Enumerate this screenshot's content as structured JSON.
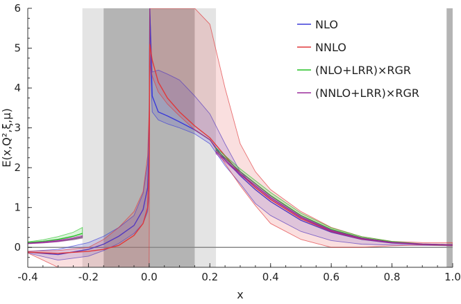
{
  "chart_data": {
    "type": "line",
    "xlabel": "x",
    "ylabel": "E(x,Q²,ξ,μ)",
    "xlim": [
      -0.4,
      1.0
    ],
    "ylim": [
      -0.5,
      6.0
    ],
    "xticks": [
      -0.4,
      -0.2,
      0.0,
      0.2,
      0.4,
      0.6,
      0.8,
      1.0
    ],
    "xtick_labels": [
      "-0.4",
      "-0.2",
      "0.0",
      "0.2",
      "0.4",
      "0.6",
      "0.8",
      "1.0"
    ],
    "yticks": [
      0,
      1,
      2,
      3,
      4,
      5,
      6
    ],
    "ytick_labels": [
      "0",
      "1",
      "2",
      "3",
      "4",
      "5",
      "6"
    ],
    "grid": false,
    "legend_position": "top-right",
    "shaded_regions": [
      {
        "x0": -0.22,
        "x1": 0.22,
        "shade": "light"
      },
      {
        "x0": -0.15,
        "x1": 0.15,
        "shade": "dark"
      },
      {
        "x0": 0.98,
        "x1": 1.0,
        "shade": "dark"
      }
    ],
    "colors": {
      "NLO": "#3a3ad8",
      "NNLO": "#e0383a",
      "LRR_NLO": "#22c022",
      "LRR_NNLO": "#9a2a9a",
      "zero_line": "#888888"
    },
    "series": [
      {
        "name": "NLO",
        "color": "#3a3ad8",
        "x": [
          -0.4,
          -0.3,
          -0.2,
          -0.15,
          -0.1,
          -0.05,
          -0.02,
          -0.005,
          0.0,
          0.002,
          0.01,
          0.03,
          0.06,
          0.1,
          0.15,
          0.2,
          0.25,
          0.3,
          0.35,
          0.4,
          0.5,
          0.6,
          0.7,
          0.8,
          0.9,
          1.0
        ],
        "y": [
          -0.12,
          -0.18,
          -0.05,
          0.08,
          0.28,
          0.55,
          0.95,
          1.5,
          2.5,
          6.0,
          3.8,
          3.4,
          3.3,
          3.15,
          2.95,
          2.7,
          2.2,
          1.8,
          1.45,
          1.15,
          0.68,
          0.38,
          0.2,
          0.11,
          0.07,
          0.06
        ],
        "band_lo": [
          -0.14,
          -0.32,
          -0.22,
          -0.08,
          0.1,
          0.35,
          0.6,
          0.9,
          1.3,
          5.0,
          3.4,
          3.2,
          3.1,
          3.0,
          2.85,
          2.6,
          2.05,
          1.6,
          1.1,
          0.8,
          0.4,
          0.17,
          0.08,
          0.06,
          0.05,
          0.04
        ],
        "band_hi": [
          -0.1,
          -0.05,
          0.12,
          0.28,
          0.5,
          0.8,
          1.35,
          2.1,
          3.3,
          6.0,
          4.4,
          4.45,
          4.35,
          4.2,
          3.8,
          3.35,
          2.6,
          1.9,
          1.5,
          1.2,
          0.72,
          0.42,
          0.24,
          0.13,
          0.08,
          0.07
        ]
      },
      {
        "name": "NNLO",
        "color": "#e0383a",
        "x": [
          -0.4,
          -0.3,
          -0.2,
          -0.15,
          -0.1,
          -0.05,
          -0.02,
          -0.005,
          0.0,
          0.002,
          0.01,
          0.03,
          0.06,
          0.1,
          0.15,
          0.2,
          0.25,
          0.3,
          0.35,
          0.4,
          0.5,
          0.6,
          0.7,
          0.8,
          0.9,
          1.0
        ],
        "y": [
          -0.12,
          -0.15,
          -0.1,
          -0.05,
          0.05,
          0.3,
          0.6,
          1.0,
          2.0,
          5.1,
          4.7,
          4.15,
          3.75,
          3.4,
          3.05,
          2.75,
          2.3,
          1.85,
          1.5,
          1.2,
          0.72,
          0.4,
          0.21,
          0.12,
          0.08,
          0.06
        ],
        "band_lo": [
          -0.14,
          -0.5,
          -0.5,
          -0.5,
          -0.5,
          -0.5,
          -0.5,
          -0.5,
          -0.5,
          4.6,
          4.3,
          3.9,
          3.6,
          3.3,
          2.95,
          2.7,
          2.1,
          1.55,
          1.05,
          0.6,
          0.2,
          0.0,
          0.0,
          0.04,
          0.06,
          0.04
        ],
        "band_hi": [
          -0.1,
          -0.08,
          0.0,
          0.2,
          0.5,
          0.9,
          1.4,
          2.3,
          3.5,
          6.0,
          6.0,
          6.0,
          6.0,
          6.0,
          6.0,
          5.6,
          4.0,
          2.6,
          1.9,
          1.45,
          0.9,
          0.5,
          0.27,
          0.15,
          0.12,
          0.12
        ]
      },
      {
        "name": "(NLO+LRR)×RGR",
        "color": "#22c022",
        "x": [
          -0.4,
          -0.35,
          -0.3,
          -0.25,
          -0.22,
          null,
          0.22,
          0.3,
          0.4,
          0.5,
          0.6,
          0.7,
          0.8,
          0.9,
          1.0
        ],
        "y": [
          0.12,
          0.15,
          0.2,
          0.28,
          0.35,
          null,
          2.45,
          1.9,
          1.3,
          0.8,
          0.45,
          0.24,
          0.13,
          0.08,
          0.06
        ],
        "band_lo": [
          0.1,
          0.12,
          0.15,
          0.2,
          0.25,
          null,
          2.4,
          1.85,
          1.25,
          0.76,
          0.42,
          0.22,
          0.12,
          0.07,
          0.05
        ],
        "band_hi": [
          0.14,
          0.19,
          0.27,
          0.38,
          0.5,
          null,
          2.5,
          1.97,
          1.38,
          0.86,
          0.49,
          0.27,
          0.15,
          0.09,
          0.07
        ]
      },
      {
        "name": "(NNLO+LRR)×RGR",
        "color": "#9a2a9a",
        "x": [
          -0.4,
          -0.35,
          -0.3,
          -0.25,
          -0.22,
          null,
          0.22,
          0.3,
          0.4,
          0.5,
          0.6,
          0.7,
          0.8,
          0.9,
          1.0
        ],
        "y": [
          0.1,
          0.12,
          0.16,
          0.22,
          0.27,
          null,
          2.4,
          1.85,
          1.25,
          0.76,
          0.42,
          0.22,
          0.12,
          0.08,
          0.06
        ],
        "band_lo": [
          0.09,
          0.11,
          0.14,
          0.19,
          0.23,
          null,
          2.35,
          1.82,
          1.22,
          0.74,
          0.4,
          0.21,
          0.11,
          0.07,
          0.05
        ],
        "band_hi": [
          0.11,
          0.14,
          0.18,
          0.25,
          0.3,
          null,
          2.45,
          1.9,
          1.29,
          0.79,
          0.44,
          0.24,
          0.13,
          0.09,
          0.07
        ]
      }
    ]
  }
}
